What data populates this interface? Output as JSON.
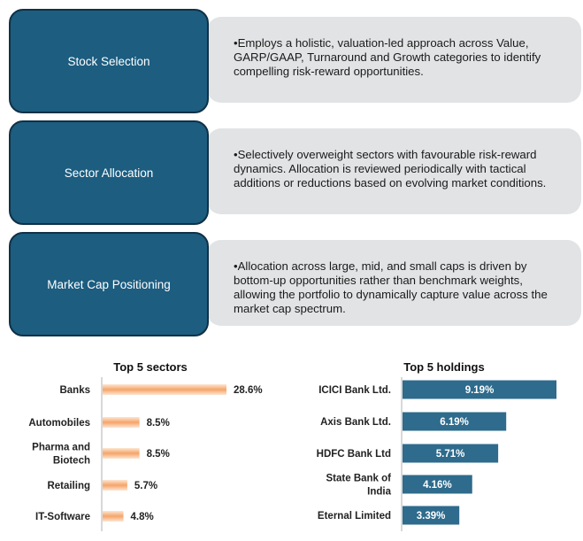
{
  "strategy": [
    {
      "category": "Stock Selection",
      "description": "•Employs a holistic, valuation-led approach across Value, GARP/GAAP, Turnaround and Growth categories to identify compelling risk-reward opportunities."
    },
    {
      "category": "Sector Allocation",
      "description": "•Selectively overweight sectors with favourable risk-reward dynamics. Allocation is reviewed periodically with tactical additions or reductions based on evolving market conditions."
    },
    {
      "category": "Market Cap Positioning",
      "description": "•Allocation across large, mid, and small caps is driven by bottom-up opportunities rather than benchmark weights, allowing the portfolio to dynamically capture value across the market cap spectrum."
    }
  ],
  "colors": {
    "primary": "#1c5d80",
    "primary_border": "#0f3146",
    "panel": "#e1e3e5",
    "sector_bar": "#f5a469",
    "holding_bar": "#2e6b8c"
  },
  "chart_data": [
    {
      "type": "bar",
      "orientation": "horizontal",
      "title": "Top 5 sectors",
      "categories": [
        "Banks",
        "Automobiles",
        "Pharma and Biotech",
        "Retailing",
        "IT-Software"
      ],
      "category_lines": [
        [
          "Banks"
        ],
        [
          "Automobiles"
        ],
        [
          "Pharma and",
          "Biotech"
        ],
        [
          "Retailing"
        ],
        [
          "IT-Software"
        ]
      ],
      "values": [
        28.6,
        8.5,
        8.5,
        5.7,
        4.8
      ],
      "value_labels": [
        "28.6%",
        "8.5%",
        "8.5%",
        "5.7%",
        "4.8%"
      ],
      "label_position": "outside",
      "color": "#f5a469"
    },
    {
      "type": "bar",
      "orientation": "horizontal",
      "title": "Top 5 holdings",
      "categories": [
        "ICICI Bank Ltd.",
        "Axis Bank Ltd.",
        "HDFC Bank Ltd",
        "State Bank of India",
        "Eternal Limited"
      ],
      "category_lines": [
        [
          "ICICI Bank Ltd."
        ],
        [
          "Axis Bank Ltd."
        ],
        [
          "HDFC Bank Ltd"
        ],
        [
          "State Bank of",
          "India"
        ],
        [
          "Eternal Limited"
        ]
      ],
      "values": [
        9.19,
        6.19,
        5.71,
        4.16,
        3.39
      ],
      "value_labels": [
        "9.19%",
        "6.19%",
        "5.71%",
        "4.16%",
        "3.39%"
      ],
      "label_position": "inside",
      "color": "#2e6b8c"
    }
  ]
}
